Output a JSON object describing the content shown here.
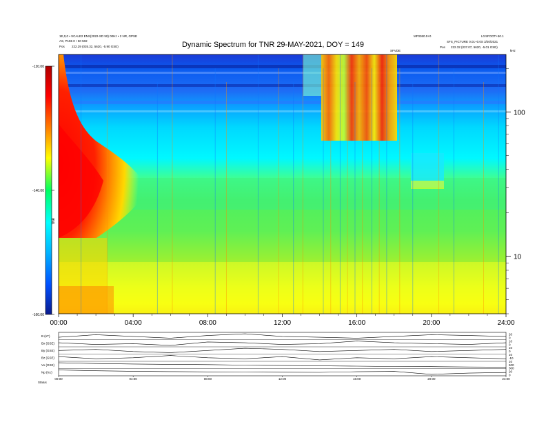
{
  "header": {
    "title": "Dynamic Spectrum for TNR 29-MAY-2021, DOY = 149",
    "left_line1": "1E,0,0 • SCALE2 ENS(2022-SD 50) 00Hz • 2 NR, GPSE",
    "left_line2": "AS, P155 0 • 50 502",
    "left_line3_label": "Pos",
    "left_line3_value": "222.29 (035.32, 5620, -5.90 GSE)",
    "right_top_a": "MF0360.0+0",
    "right_top_b": "L0.5FOOT+50.1",
    "right_line2": "SFS_PICTURE 0.01+0.0S 3/20/2021",
    "right_line3_label": "Pos",
    "right_line3_value": "222.32 (037.07, 5620, -5.01 GSE)",
    "event_tag": "SFVDE",
    "corner_tag": "kHz"
  },
  "chart_data": [
    {
      "type": "heatmap",
      "title": "Dynamic Spectrum for TNR 29-MAY-2021, DOY = 149",
      "x_ticks": [
        "00:00",
        "04:00",
        "08:00",
        "12:00",
        "16:00",
        "20:00",
        "24:00"
      ],
      "x_range_hours": [
        0,
        24
      ],
      "y_scale": "log",
      "y_range_khz": [
        4,
        250
      ],
      "y_ticks_labeled": [
        10,
        100
      ],
      "y_label": "kHz",
      "colorbar": {
        "ticks": [
          "-120.00",
          "-140.00",
          "-160.00"
        ],
        "range": [
          -160,
          -120
        ],
        "axis_label": "TNR",
        "colors": [
          "#0a1a8c",
          "#0050ff",
          "#00b4ff",
          "#00ffff",
          "#00ff60",
          "#ffff00",
          "#ff8000",
          "#ff0000",
          "#b00000"
        ]
      },
      "features": {
        "background_cyan_top": true,
        "red_burst_start_hours": [
          0.0,
          2.3
        ],
        "type3_storm_hours": [
          13.8,
          18.0
        ],
        "enhancement_hours": [
          18.9,
          20.5
        ]
      }
    },
    {
      "type": "line",
      "x_ticks": [
        "00:00",
        "04:00",
        "08:00",
        "12:00",
        "16:00",
        "20:00",
        "24:00"
      ],
      "series": [
        {
          "name": "B (nT)",
          "values": [
            4.5,
            4.8,
            4.6,
            4.4,
            4.7,
            4.9,
            4.6,
            4.5,
            4.4,
            4.6,
            4.8,
            4.7,
            4.6
          ]
        },
        {
          "name": "Bx (GSE)",
          "values": [
            1.2,
            1.0,
            1.1,
            0.9,
            1.3,
            1.2,
            1.0,
            1.1,
            1.4,
            1.2,
            1.1,
            1.0,
            1.2
          ]
        },
        {
          "name": "By (GSE)",
          "values": [
            -2.1,
            -2.0,
            -2.2,
            -2.3,
            -2.1,
            -1.9,
            -2.0,
            -2.2,
            -2.1,
            -2.0,
            -2.2,
            -2.1,
            -2.0
          ]
        },
        {
          "name": "Bz (GSE)",
          "values": [
            0.4,
            0.2,
            0.3,
            0.5,
            0.3,
            0.2,
            0.4,
            0.1,
            0.3,
            0.2,
            0.4,
            0.3,
            0.2
          ]
        },
        {
          "name": "Vx (GSE)",
          "values": [
            380,
            375,
            372,
            370,
            368,
            365,
            362,
            360,
            358,
            356,
            355,
            353,
            352
          ]
        },
        {
          "name": "Np (/cc)",
          "values": [
            6.0,
            5.5,
            5.2,
            5.0,
            4.8,
            4.7,
            4.6,
            4.5,
            4.9,
            5.1,
            3.2,
            4.0,
            4.4
          ]
        }
      ],
      "left_labels": [
        "B (nT)",
        "Bx (GSE)",
        "By (GSE)",
        "Bz (GSE)",
        "Vx (GSE)",
        "Np (/cc)"
      ],
      "right_labels": [
        "20",
        "0",
        "10",
        "0",
        "10",
        "0",
        "10",
        "-10",
        "10",
        "500",
        "300",
        "20",
        "0"
      ],
      "bottom_tag": "Status"
    }
  ]
}
